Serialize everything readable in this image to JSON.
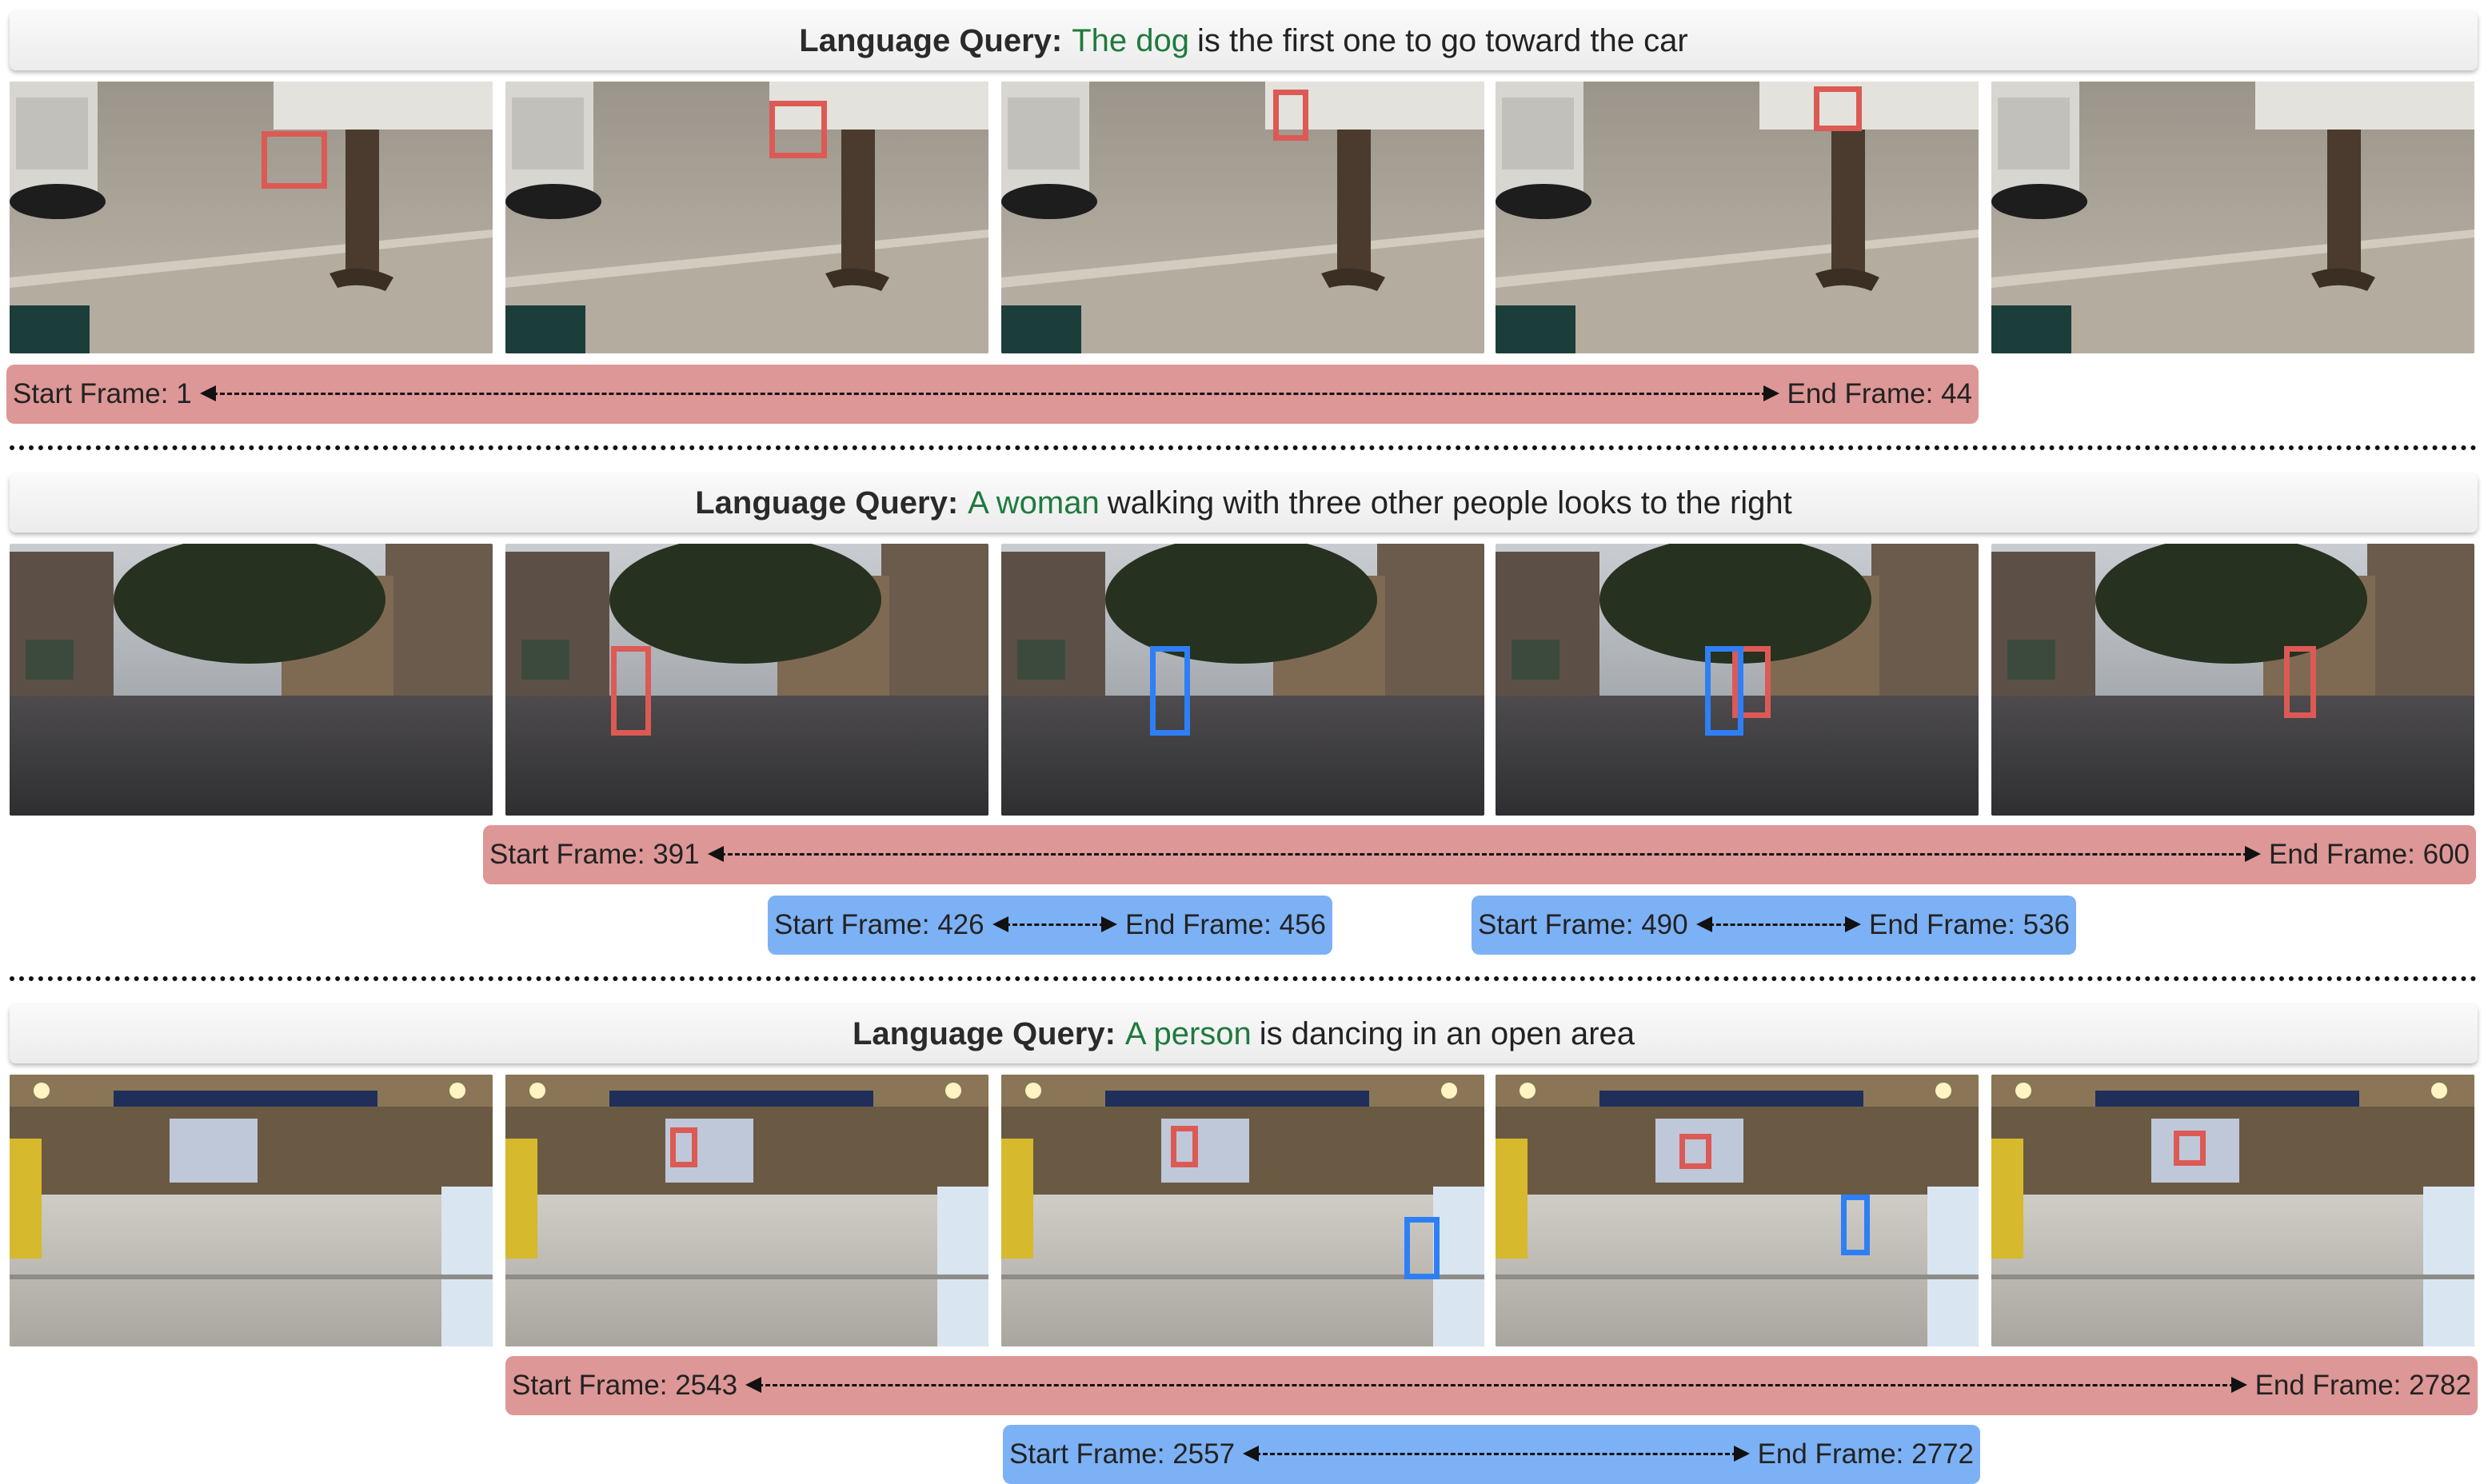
{
  "panels": [
    {
      "query_label": "Language Query:",
      "query_subject": "The dog",
      "query_rest": "is the first one to go toward the car",
      "red_spans": [
        {
          "start": "Start Frame: 1",
          "end": "End Frame: 44"
        }
      ],
      "blue_spans": []
    },
    {
      "query_label": "Language Query:",
      "query_subject": "A woman",
      "query_rest": "walking with three other people looks to the right",
      "red_spans": [
        {
          "start": "Start Frame: 391",
          "end": "End Frame: 600"
        }
      ],
      "blue_spans": [
        {
          "start": "Start Frame: 426",
          "end": "End Frame: 456"
        },
        {
          "start": "Start Frame: 490",
          "end": "End Frame: 536"
        }
      ]
    },
    {
      "query_label": "Language Query:",
      "query_subject": "A person",
      "query_rest": "is dancing in an open area",
      "red_spans": [
        {
          "start": "Start Frame: 2543",
          "end": "End Frame: 2782"
        }
      ],
      "blue_spans": [
        {
          "start": "Start Frame: 2557",
          "end": "End Frame: 2772"
        }
      ]
    }
  ],
  "colors": {
    "subject_text": "#1f7a3d",
    "red_span": "#dd9796",
    "blue_span": "#7db1f5",
    "red_box": "#dc5a55",
    "blue_box": "#2e7ff5"
  }
}
